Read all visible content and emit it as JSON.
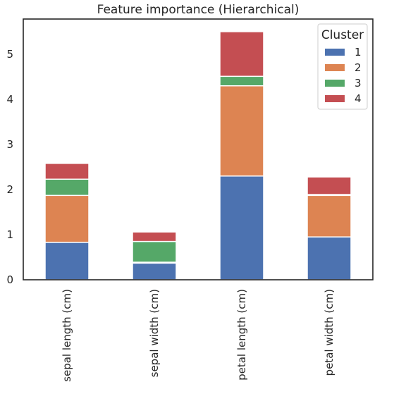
{
  "chart_data": {
    "type": "bar",
    "stacked": true,
    "title": "Feature importance (Hierarchical)",
    "xlabel": "",
    "ylabel": "",
    "categories": [
      "sepal length (cm)",
      "sepal width (cm)",
      "petal length (cm)",
      "petal width (cm)"
    ],
    "series": [
      {
        "name": "1",
        "color": "#4c72b0",
        "values": [
          0.83,
          0.37,
          2.3,
          0.95
        ]
      },
      {
        "name": "2",
        "color": "#dd8452",
        "values": [
          1.04,
          0.02,
          2.0,
          0.92
        ]
      },
      {
        "name": "3",
        "color": "#55a868",
        "values": [
          0.36,
          0.46,
          0.21,
          0.02
        ]
      },
      {
        "name": "4",
        "color": "#c44e52",
        "values": [
          0.35,
          0.21,
          0.99,
          0.39
        ]
      }
    ],
    "yticks": [
      "0",
      "1",
      "2",
      "3",
      "4",
      "5"
    ],
    "ylim": [
      0,
      5.78
    ],
    "grid": false,
    "legend": {
      "title": "Cluster",
      "position": "top-right"
    }
  }
}
